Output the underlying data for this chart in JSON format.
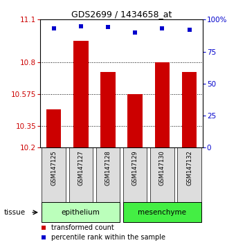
{
  "title": "GDS2699 / 1434658_at",
  "samples": [
    "GSM147125",
    "GSM147127",
    "GSM147128",
    "GSM147129",
    "GSM147130",
    "GSM147132"
  ],
  "transformed_counts": [
    10.47,
    10.95,
    10.73,
    10.575,
    10.8,
    10.73
  ],
  "percentile_ranks": [
    93,
    95,
    94,
    90,
    93,
    92
  ],
  "ymin": 10.2,
  "ymax": 11.1,
  "yticks": [
    10.2,
    10.35,
    10.575,
    10.8,
    11.1
  ],
  "ytick_labels": [
    "10.2",
    "10.35",
    "10.575",
    "10.8",
    "11.1"
  ],
  "right_yticks": [
    0,
    25,
    50,
    75,
    100
  ],
  "bar_color": "#cc0000",
  "dot_color": "#0000cc",
  "group_defs": [
    {
      "start": 0,
      "end": 2,
      "label": "epithelium",
      "color": "#bbffbb"
    },
    {
      "start": 3,
      "end": 5,
      "label": "mesenchyme",
      "color": "#44ee44"
    }
  ],
  "tissue_label": "tissue",
  "legend_bar_label": "transformed count",
  "legend_dot_label": "percentile rank within the sample",
  "background_color": "#ffffff"
}
